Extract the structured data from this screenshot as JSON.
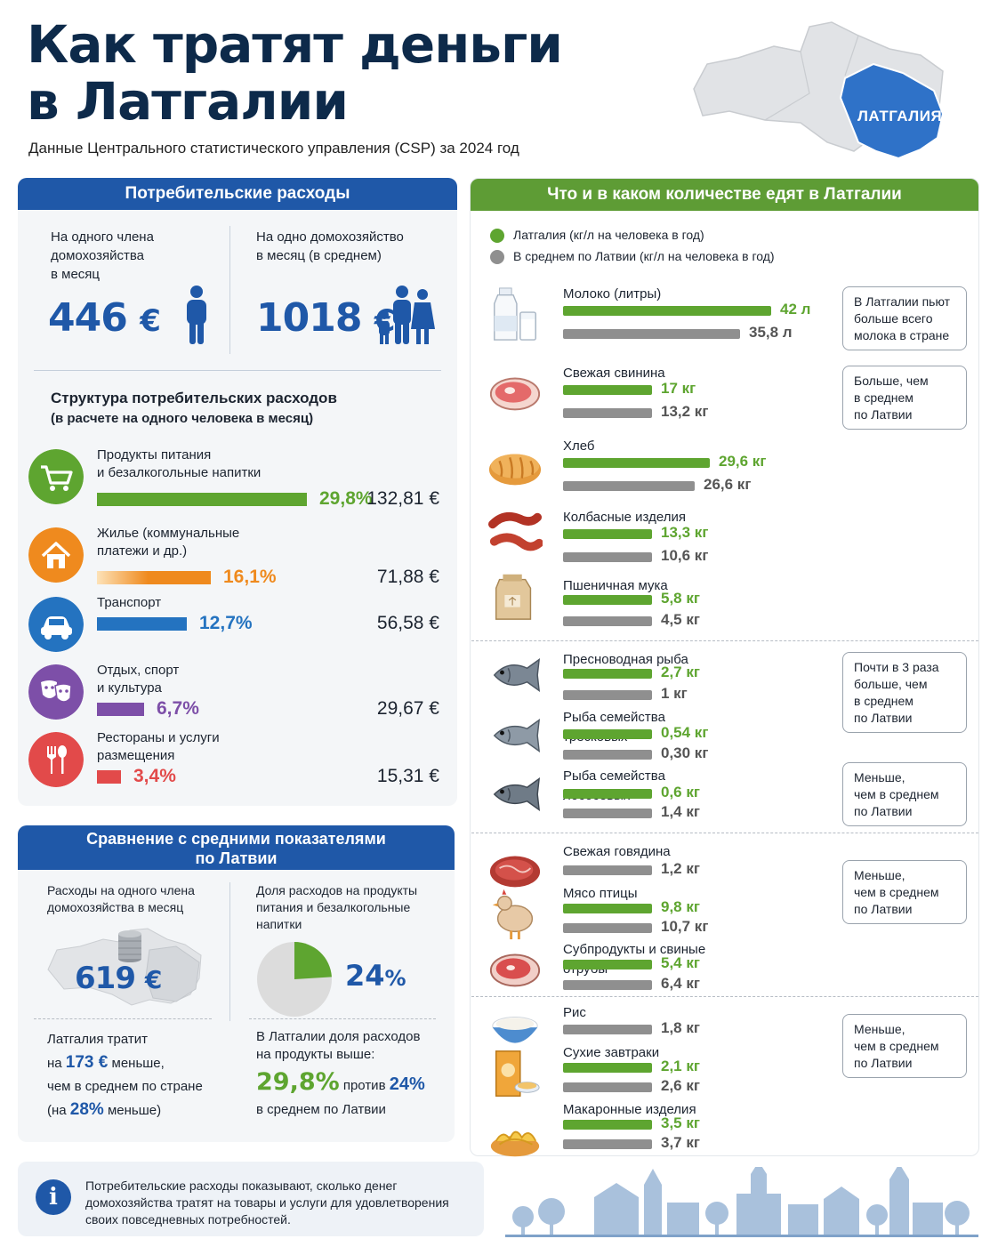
{
  "header": {
    "title_line1": "Как тратят деньги",
    "title_line2": "в Латгалии",
    "subtitle": "Данные Центрального статистического управления (CSP) за 2024 год",
    "map_label": "ЛАТГАЛИЯ"
  },
  "spending": {
    "heading": "Потребительские расходы",
    "per_member": {
      "label_l1": "На одного члена",
      "label_l2": "домохозяйства",
      "label_l3": "в месяц",
      "value": "446",
      "currency": "€"
    },
    "per_household": {
      "label_l1": "На одно домохозяйство",
      "label_l2": "в месяц (в среднем)",
      "value": "1018",
      "currency": "€"
    },
    "structure_title": "Структура потребительских расходов",
    "structure_sub": "(в расчете на одного человека в месяц)",
    "categories": [
      {
        "l1": "Продукты питания",
        "l2": "и безалкогольные напитки",
        "pct": "29,8%",
        "share": 29.8,
        "amount": "132,81 €",
        "color": "#5ea530",
        "icon": "shopping-cart-icon"
      },
      {
        "l1": "Жилье (коммунальные",
        "l2": "платежи и др.)",
        "pct": "16,1%",
        "share": 16.1,
        "amount": "71,88 €",
        "color": "#ef8a1e",
        "icon": "house-icon"
      },
      {
        "l1": "Транспорт",
        "l2": "",
        "pct": "12,7%",
        "share": 12.7,
        "amount": "56,58 €",
        "color": "#2473c0",
        "icon": "car-icon"
      },
      {
        "l1": "Отдых, спорт",
        "l2": "и культура",
        "pct": "6,7%",
        "share": 6.7,
        "amount": "29,67 €",
        "color": "#7d4fa8",
        "icon": "theater-masks-icon"
      },
      {
        "l1": "Рестораны и услуги",
        "l2": "размещения",
        "pct": "3,4%",
        "share": 3.4,
        "amount": "15,31 €",
        "color": "#e24a4a",
        "icon": "fork-spoon-icon"
      }
    ]
  },
  "comparison": {
    "heading_l1": "Сравнение с средними показателями",
    "heading_l2": "по Латвии",
    "left_label_l1": "Расходы на одного члена",
    "left_label_l2": "домохозяйства в месяц",
    "left_value": "619",
    "left_currency": "€",
    "right_label_l1": "Доля расходов на продукты",
    "right_label_l2": "питания и безалкогольные",
    "right_label_l3": "напитки",
    "right_value": "24",
    "right_unit": "%",
    "pie_share": 24,
    "bottom_left": {
      "l1": "Латгалия тратит",
      "l2_pre": "на ",
      "l2_num": "173 €",
      "l2_post": " меньше,",
      "l3": "чем в среднем по стране",
      "l4_pre": "(на ",
      "l4_num": "28%",
      "l4_post": " меньше)"
    },
    "bottom_right": {
      "l1": "В Латгалии доля расходов",
      "l2": "на продукты выше:",
      "val_a": "29,8%",
      "mid": " против ",
      "val_b": "24%",
      "l4": "в среднем по Латвии"
    }
  },
  "info": {
    "l1": "Потребительские расходы показывают, сколько денег",
    "l2": "домохозяйства тратят на товары и услуги для удовлетворения",
    "l3": "своих повседневных потребностей."
  },
  "food": {
    "heading": "Что и в каком количестве едят в Латгалии",
    "legend_latgale": "Латгалия (кг/л на человека в год)",
    "legend_latvia": "В среднем по Латвии (кг/л на человека в год)",
    "colors": {
      "latgale": "#5ea530",
      "latvia": "#8f8f8f"
    },
    "items": [
      {
        "name": "Молоко (литры)",
        "latgale": 42,
        "latvia": 35.8,
        "latgale_label": "42 л",
        "latvia_label": "35,8 л",
        "icon": "milk-icon"
      },
      {
        "name": "Свежая свинина",
        "latgale": 17,
        "latvia": 13.2,
        "latgale_label": "17 кг",
        "latvia_label": "13,2 кг",
        "icon": "pork-steak-icon"
      },
      {
        "name": "Хлеб",
        "latgale": 29.6,
        "latvia": 26.6,
        "latgale_label": "29,6 кг",
        "latvia_label": "26,6 кг",
        "icon": "bread-icon"
      },
      {
        "name": "Колбасные изделия",
        "latgale": 13.3,
        "latvia": 10.6,
        "latgale_label": "13,3 кг",
        "latvia_label": "10,6 кг",
        "icon": "sausage-icon"
      },
      {
        "name": "Пшеничная мука",
        "latgale": 5.8,
        "latvia": 4.5,
        "latgale_label": "5,8 кг",
        "latvia_label": "4,5 кг",
        "icon": "flour-sack-icon"
      },
      {
        "name": "Пресноводная рыба",
        "latgale": 2.7,
        "latvia": 1,
        "latgale_label": "2,7 кг",
        "latvia_label": "1 кг",
        "icon": "fish-icon"
      },
      {
        "name": "Рыба семейства",
        "name2": "тресковых",
        "latgale": 0.54,
        "latvia": 0.3,
        "latgale_label": "0,54 кг",
        "latvia_label": "0,30 кг",
        "icon": "cod-fish-icon"
      },
      {
        "name": "Рыба семейства",
        "name2": "лососевых",
        "latgale": 0.6,
        "latvia": 1.4,
        "latgale_label": "0,6 кг",
        "latvia_label": "1,4 кг",
        "icon": "salmon-fish-icon"
      },
      {
        "name": "Свежая говядина",
        "latgale": null,
        "latvia": 1.2,
        "latgale_label": "",
        "latvia_label": "1,2 кг",
        "icon": "beef-steak-icon"
      },
      {
        "name": "Мясо птицы",
        "latgale": 9.8,
        "latvia": 10.7,
        "latgale_label": "9,8 кг",
        "latvia_label": "10,7 кг",
        "icon": "chicken-icon"
      },
      {
        "name": "Субпродукты и свиные",
        "name2": "отрубы",
        "latgale": 5.4,
        "latvia": 6.4,
        "latgale_label": "5,4 кг",
        "latvia_label": "6,4 кг",
        "icon": "meat-cut-icon"
      },
      {
        "name": "Рис",
        "latgale": null,
        "latvia": 1.8,
        "latgale_label": "",
        "latvia_label": "1,8 кг",
        "icon": "rice-bowl-icon"
      },
      {
        "name": "Сухие завтраки",
        "latgale": 2.1,
        "latvia": 2.6,
        "latgale_label": "2,1 кг",
        "latvia_label": "2,6 кг",
        "icon": "cereal-box-icon"
      },
      {
        "name": "Макаронные изделия",
        "latgale": 3.5,
        "latvia": 3.7,
        "latgale_label": "3,5 кг",
        "latvia_label": "3,7 кг",
        "icon": "pasta-icon"
      }
    ],
    "notes": [
      {
        "l1": "В Латгалии пьют",
        "l2": "больше всего",
        "l3": "молока в стране"
      },
      {
        "l1": "Больше, чем",
        "l2": "в среднем",
        "l3": "по Латвии"
      },
      {
        "l1": "Почти в 3 раза",
        "l2": "больше, чем",
        "l3": "в среднем",
        "l4": "по Латвии"
      },
      {
        "l1": "Меньше,",
        "l2": "чем в среднем",
        "l3": "по Латвии"
      },
      {
        "l1": "Меньше,",
        "l2": "чем в среднем",
        "l3": "по Латвии"
      },
      {
        "l1": "Меньше,",
        "l2": "чем в среднем",
        "l3": "по Латвии"
      }
    ]
  }
}
